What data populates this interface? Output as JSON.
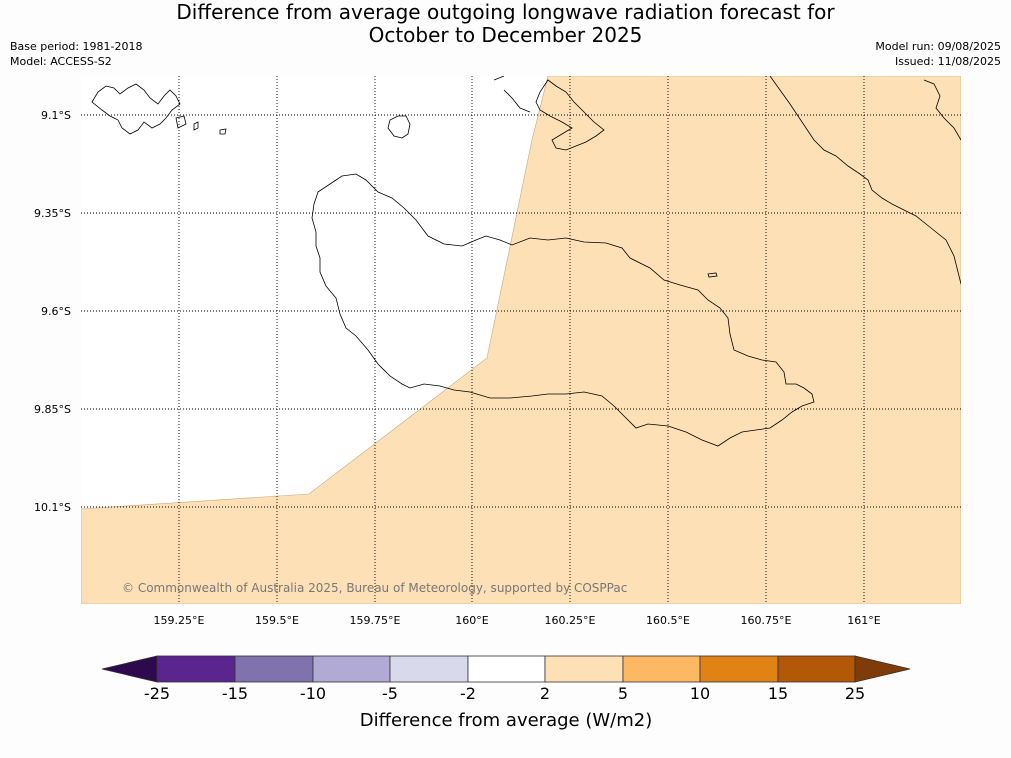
{
  "header": {
    "title_line1": "Difference from average outgoing longwave radiation forecast for",
    "title_line2": "October to December 2025",
    "base_period": "Base period: 1981-2018",
    "model": "Model: ACCESS-S2",
    "model_run": "Model run: 09/08/2025",
    "issued": "Issued: 11/08/2025"
  },
  "map": {
    "lat_labels": [
      "9.1°S",
      "9.35°S",
      "9.6°S",
      "9.85°S",
      "10.1°S"
    ],
    "lon_labels": [
      "159.25°E",
      "159.5°E",
      "159.75°E",
      "160°E",
      "160.25°E",
      "160.5°E",
      "160.75°E",
      "161°E"
    ],
    "copyright": "© Commonwealth of Australia 2025, Bureau of Meteorology, supported by COSPPac",
    "land_color": "#ffffff",
    "anomaly_fill_color": "#fde0b6",
    "anomaly_category": "2 to 5"
  },
  "colorbar": {
    "ticks": [
      "-25",
      "-15",
      "-10",
      "-5",
      "-2",
      "2",
      "5",
      "10",
      "15",
      "25"
    ],
    "colors": [
      "#2d0a4e",
      "#5b2590",
      "#8073ad",
      "#b1aad5",
      "#d9d9ec",
      "#ffffff",
      "#fde0b6",
      "#fdb863",
      "#e08214",
      "#b35806",
      "#7f3b08"
    ],
    "label": "Difference from average (W/m2)"
  }
}
